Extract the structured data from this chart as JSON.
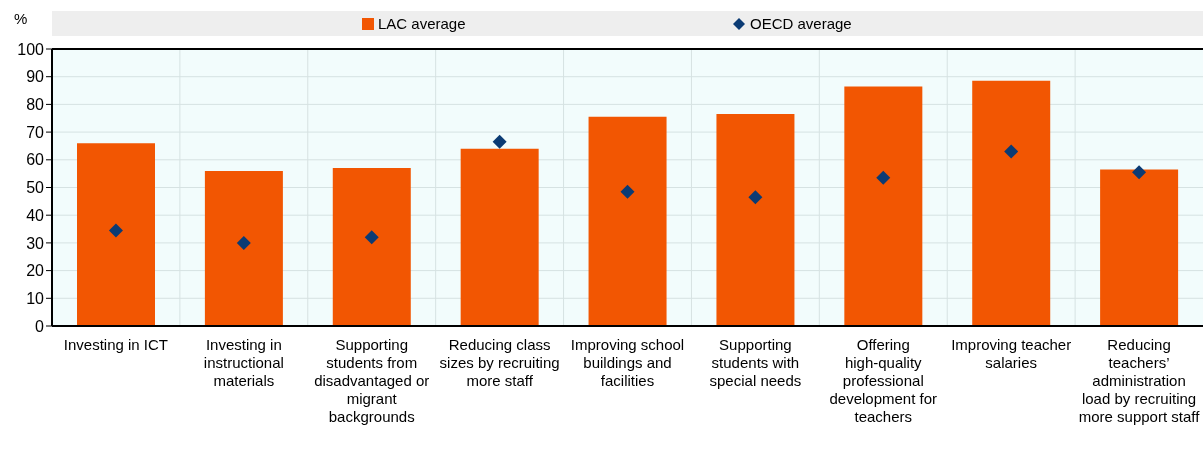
{
  "chart_data": {
    "type": "bar",
    "ylabel": "%",
    "categories": [
      "Investing in ICT",
      "Investing in instructional materials",
      "Supporting students from disadvantaged or migrant backgrounds",
      "Reducing class sizes by recruiting more staff",
      "Improving school buildings and facilities",
      "Supporting students with special needs",
      "Offering high-quality professional development for teachers",
      "Improving teacher salaries",
      "Reducing teachers’ administration load by recruiting more support staff"
    ],
    "series": [
      {
        "name": "LAC average",
        "color": "#f25602",
        "values": [
          66,
          56,
          57,
          64,
          75.5,
          76.5,
          86.5,
          88.5,
          56.5
        ]
      },
      {
        "name": "OECD average",
        "type": "scatter",
        "marker": "diamond",
        "color": "#0b3b74",
        "values": [
          34.5,
          30,
          32,
          66.5,
          48.5,
          46.5,
          53.5,
          63,
          55.5
        ]
      }
    ],
    "ylim": [
      0,
      100
    ],
    "yticks": [
      0,
      10,
      20,
      30,
      40,
      50,
      60,
      70,
      80,
      90,
      100
    ],
    "grid": true,
    "legend": "top"
  }
}
